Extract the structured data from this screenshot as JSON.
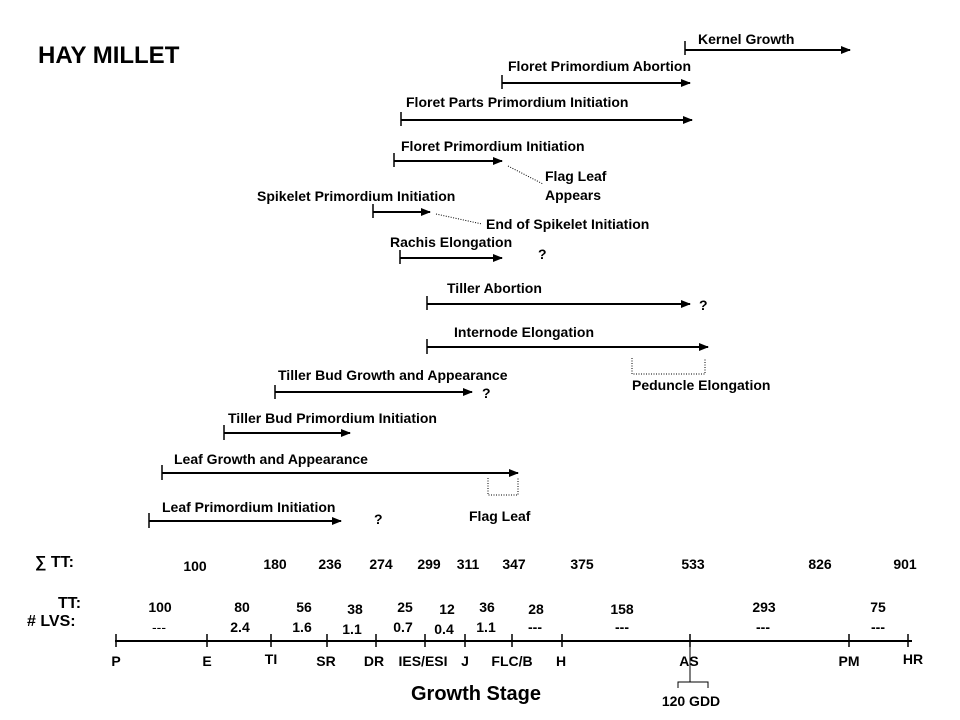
{
  "title": "HAY MILLET",
  "events": [
    {
      "id": "kernel-growth",
      "label": "Kernel Growth"
    },
    {
      "id": "floret-primordium-abortion",
      "label": "Floret Primordium Abortion"
    },
    {
      "id": "floret-parts-primordium-initiation",
      "label": "Floret Parts Primordium Initiation"
    },
    {
      "id": "floret-primordium-initiation",
      "label": "Floret Primordium Initiation"
    },
    {
      "id": "spikelet-primordium-initiation",
      "label": "Spikelet Primordium Initiation"
    },
    {
      "id": "rachis-elongation",
      "label": "Rachis Elongation"
    },
    {
      "id": "tiller-abortion",
      "label": "Tiller Abortion"
    },
    {
      "id": "internode-elongation",
      "label": "Internode Elongation"
    },
    {
      "id": "tiller-bud-growth",
      "label": "Tiller Bud Growth and Appearance"
    },
    {
      "id": "tiller-bud-primordium",
      "label": "Tiller Bud Primordium Initiation"
    },
    {
      "id": "leaf-growth",
      "label": "Leaf Growth and Appearance"
    },
    {
      "id": "leaf-primordium",
      "label": "Leaf Primordium Initiation"
    }
  ],
  "annotations": {
    "flag_leaf_appears_line1": "Flag Leaf",
    "flag_leaf_appears_line2": "Appears",
    "end_of_spikelet_initiation": "End of Spikelet Initiation",
    "peduncle_elongation": "Peduncle Elongation",
    "flag_leaf": "Flag Leaf",
    "question_mark": "?"
  },
  "rows": {
    "sum_tt_label": "∑ TT:",
    "tt_label": "TT:",
    "lvs_label": "# LVS:",
    "sum_tt": [
      "100",
      "180",
      "236",
      "274",
      "299",
      "311",
      "347",
      "375",
      "533",
      "826",
      "901"
    ],
    "tt": [
      "100",
      "80",
      "56",
      "38",
      "25",
      "12",
      "36",
      "28",
      "158",
      "293",
      "75"
    ],
    "lvs": [
      "---",
      "2.4",
      "1.6",
      "1.1",
      "0.7",
      "0.4",
      "1.1",
      "---",
      "---",
      "---",
      "---"
    ]
  },
  "stages": [
    "P",
    "E",
    "TI",
    "SR",
    "DR",
    "IES/ESI",
    "J",
    "FLC/B",
    "H",
    "AS",
    "PM",
    "HR"
  ],
  "gdd_note": "120 GDD",
  "axis_title": "Growth Stage"
}
